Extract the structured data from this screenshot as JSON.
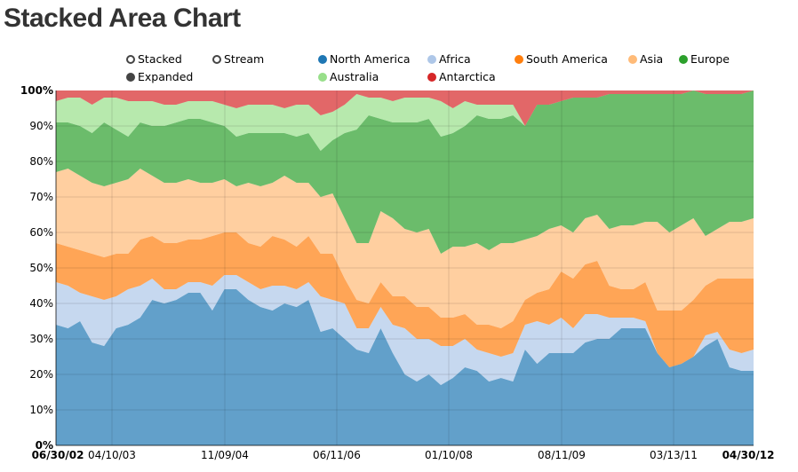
{
  "title": "Stacked Area Chart",
  "controls": [
    {
      "label": "Stacked",
      "selected": false
    },
    {
      "label": "Stream",
      "selected": false
    },
    {
      "label": "Expanded",
      "selected": true
    }
  ],
  "chart_data": {
    "type": "area",
    "mode": "expanded",
    "x_tick_labels": [
      "06/30/02",
      "04/10/03",
      "11/09/04",
      "06/11/06",
      "01/10/08",
      "08/11/09",
      "03/13/11",
      "04/30/12"
    ],
    "y_tick_labels": [
      "0%",
      "10%",
      "20%",
      "30%",
      "40%",
      "50%",
      "60%",
      "70%",
      "80%",
      "90%",
      "100%"
    ],
    "ylim": [
      0,
      100
    ],
    "grid": true,
    "legend_position": "top",
    "series": [
      {
        "name": "North America",
        "color": "#1f77b4",
        "values": [
          34,
          33,
          35,
          29,
          28,
          33,
          34,
          36,
          41,
          40,
          41,
          43,
          43,
          38,
          44,
          44,
          41,
          39,
          38,
          40,
          39,
          41,
          32,
          33,
          30,
          27,
          26,
          33,
          26,
          20,
          18,
          20,
          17,
          19,
          22,
          21,
          18,
          19,
          18,
          27,
          23,
          26,
          26,
          26,
          29,
          30,
          30,
          33,
          33,
          33,
          26,
          22,
          23,
          25,
          28,
          30,
          22,
          21,
          21
        ]
      },
      {
        "name": "Africa",
        "color": "#aec7e8",
        "values": [
          12,
          12,
          8,
          13,
          13,
          9,
          10,
          9,
          6,
          4,
          3,
          3,
          3,
          7,
          4,
          4,
          5,
          5,
          7,
          5,
          5,
          5,
          10,
          8,
          10,
          6,
          7,
          6,
          8,
          13,
          12,
          10,
          11,
          9,
          8,
          6,
          8,
          6,
          8,
          7,
          12,
          8,
          10,
          7,
          8,
          7,
          6,
          3,
          3,
          2,
          0,
          0,
          0,
          0,
          3,
          2,
          5,
          5,
          6
        ]
      },
      {
        "name": "South America",
        "color": "#ff7f0e",
        "values": [
          11,
          11,
          12,
          12,
          12,
          12,
          10,
          13,
          12,
          13,
          13,
          12,
          12,
          14,
          12,
          12,
          11,
          12,
          14,
          13,
          12,
          13,
          12,
          13,
          7,
          8,
          7,
          7,
          8,
          9,
          9,
          9,
          8,
          8,
          7,
          7,
          8,
          8,
          9,
          7,
          8,
          10,
          13,
          14,
          14,
          15,
          9,
          8,
          8,
          11,
          12,
          16,
          15,
          16,
          14,
          15,
          20,
          21,
          20
        ]
      },
      {
        "name": "Asia",
        "color": "#ffbb78",
        "values": [
          20,
          22,
          21,
          20,
          20,
          20,
          21,
          20,
          17,
          17,
          17,
          17,
          16,
          15,
          15,
          13,
          17,
          17,
          15,
          18,
          18,
          15,
          16,
          17,
          17,
          16,
          17,
          20,
          22,
          19,
          21,
          22,
          18,
          20,
          19,
          23,
          21,
          24,
          22,
          17,
          16,
          17,
          13,
          13,
          13,
          13,
          16,
          18,
          18,
          17,
          25,
          22,
          24,
          23,
          14,
          14,
          16,
          16,
          17
        ]
      },
      {
        "name": "Europe",
        "color": "#2ca02c",
        "values": [
          14,
          13,
          14,
          14,
          18,
          15,
          12,
          13,
          14,
          16,
          17,
          17,
          18,
          17,
          15,
          14,
          14,
          15,
          14,
          12,
          13,
          14,
          13,
          15,
          24,
          32,
          36,
          26,
          27,
          30,
          31,
          31,
          33,
          32,
          34,
          36,
          37,
          35,
          36,
          32,
          37,
          35,
          35,
          38,
          34,
          33,
          38,
          37,
          37,
          36,
          36,
          39,
          37,
          36,
          40,
          38,
          36,
          36,
          36
        ]
      },
      {
        "name": "Australia",
        "color": "#98df8a",
        "values": [
          6,
          7,
          8,
          8,
          7,
          9,
          10,
          6,
          7,
          6,
          5,
          5,
          5,
          6,
          6,
          8,
          8,
          8,
          8,
          7,
          9,
          8,
          10,
          8,
          8,
          10,
          5,
          6,
          6,
          7,
          7,
          6,
          10,
          7,
          7,
          3,
          4,
          4,
          3,
          0,
          0,
          0,
          0,
          0,
          0,
          0,
          0,
          0,
          0,
          0,
          0,
          0,
          0,
          0,
          0,
          0,
          0,
          0,
          0
        ]
      },
      {
        "name": "Antarctica",
        "color": "#d62728",
        "values": [
          3,
          2,
          2,
          4,
          2,
          2,
          3,
          3,
          3,
          4,
          4,
          3,
          3,
          3,
          4,
          5,
          4,
          4,
          4,
          5,
          4,
          4,
          7,
          6,
          4,
          1,
          2,
          2,
          3,
          2,
          2,
          2,
          3,
          5,
          3,
          4,
          4,
          4,
          4,
          10,
          4,
          4,
          3,
          2,
          2,
          2,
          1,
          1,
          1,
          1,
          1,
          1,
          1,
          0,
          1,
          1,
          1,
          1,
          0
        ]
      }
    ]
  }
}
